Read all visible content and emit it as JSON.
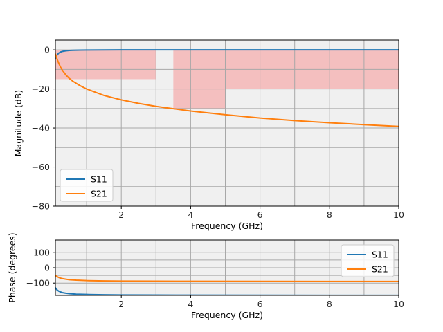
{
  "chart_data": [
    {
      "type": "line",
      "panel": "magnitude",
      "xlabel": "Frequency (GHz)",
      "ylabel": "Magnitude (dB)",
      "xlim": [
        0.1,
        10
      ],
      "ylim": [
        -80,
        5
      ],
      "xticks": [
        2,
        4,
        6,
        8,
        10
      ],
      "xtick_labels": [
        "2",
        "4",
        "6",
        "8",
        "10"
      ],
      "yticks": [
        0,
        -20,
        -40,
        -60,
        -80
      ],
      "ytick_labels": [
        "0",
        "−20",
        "−40",
        "−60",
        "−80"
      ],
      "grid": true,
      "legend_position": "lower-left",
      "mask_regions": [
        {
          "x": [
            0.1,
            3.0
          ],
          "y": [
            -15,
            0
          ]
        },
        {
          "x": [
            3.5,
            5.0
          ],
          "y": [
            -30,
            0
          ]
        },
        {
          "x": [
            5.0,
            10.0
          ],
          "y": [
            -20,
            0
          ]
        }
      ],
      "series": [
        {
          "name": "S11",
          "color": "#1f77b4",
          "x": [
            0.1,
            0.15,
            0.2,
            0.25,
            0.3,
            0.4,
            0.5,
            0.6,
            0.8,
            1.0,
            1.5,
            2,
            3,
            4,
            5,
            6,
            7,
            8,
            9,
            10
          ],
          "y": [
            -4.5,
            -2.6,
            -1.6,
            -1.1,
            -0.8,
            -0.5,
            -0.3,
            -0.22,
            -0.13,
            -0.08,
            -0.04,
            -0.02,
            -0.01,
            0,
            0,
            0,
            0,
            0,
            0,
            0
          ]
        },
        {
          "name": "S21",
          "color": "#ff7f0e",
          "x": [
            0.1,
            0.15,
            0.2,
            0.25,
            0.3,
            0.4,
            0.5,
            0.6,
            0.8,
            1.0,
            1.5,
            2,
            2.5,
            3,
            4,
            5,
            6,
            7,
            8,
            9,
            10
          ],
          "y": [
            -2.0,
            -4.8,
            -7.0,
            -8.9,
            -10.4,
            -12.8,
            -14.6,
            -16.0,
            -18.2,
            -20.0,
            -23.3,
            -25.6,
            -27.4,
            -28.9,
            -31.3,
            -33.2,
            -34.9,
            -36.2,
            -37.3,
            -38.3,
            -39.2
          ]
        }
      ]
    },
    {
      "type": "line",
      "panel": "phase",
      "xlabel": "Frequency (GHz)",
      "ylabel": "Phase (degrees)",
      "xlim": [
        0.1,
        10
      ],
      "ylim": [
        -180,
        180
      ],
      "xticks": [
        2,
        4,
        6,
        8,
        10
      ],
      "xtick_labels": [
        "2",
        "4",
        "6",
        "8",
        "10"
      ],
      "yticks": [
        100,
        0,
        -100
      ],
      "ytick_labels": [
        "100",
        "0",
        "−100"
      ],
      "grid": true,
      "legend_position": "upper-right",
      "series": [
        {
          "name": "S11",
          "color": "#1f77b4",
          "x": [
            0.1,
            0.15,
            0.2,
            0.25,
            0.3,
            0.4,
            0.5,
            0.7,
            1.0,
            1.5,
            2,
            3,
            4,
            6,
            8,
            10
          ],
          "y": [
            -130,
            -145,
            -153,
            -158,
            -162,
            -166,
            -169,
            -172,
            -174,
            -176,
            -177,
            -178,
            -178.5,
            -179,
            -179.5,
            -179.7
          ]
        },
        {
          "name": "S21",
          "color": "#ff7f0e",
          "x": [
            0.1,
            0.15,
            0.2,
            0.25,
            0.3,
            0.4,
            0.5,
            0.7,
            1.0,
            1.5,
            2,
            3,
            4,
            6,
            8,
            10
          ],
          "y": [
            -50,
            -58,
            -64,
            -68,
            -71,
            -75,
            -78,
            -81,
            -84,
            -86,
            -87,
            -88,
            -88.5,
            -89,
            -89.3,
            -89.5
          ]
        }
      ]
    }
  ]
}
